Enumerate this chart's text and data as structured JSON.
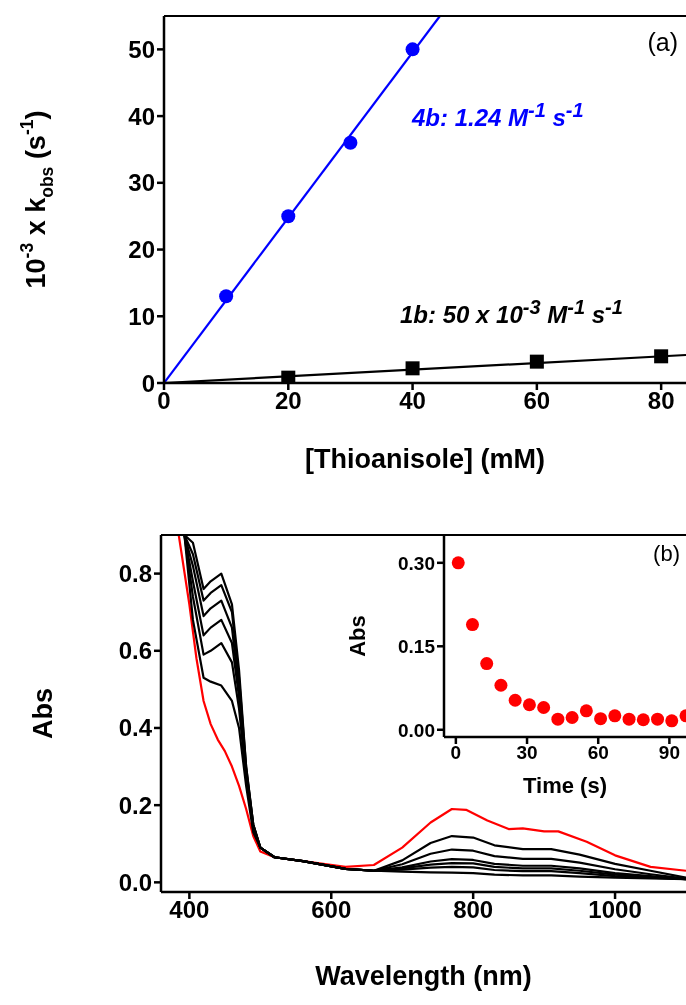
{
  "chart_data": [
    {
      "type": "scatter",
      "xlabel": "[Thioanisole] (mM)",
      "ylabel": "10$^{-3}$ x k$_{obs}$ (s$^{-1}$)",
      "xlim": [
        0,
        84
      ],
      "ylim": [
        0,
        55
      ],
      "xticks": [
        0,
        20,
        40,
        60,
        80
      ],
      "yticks": [
        0,
        10,
        20,
        30,
        40,
        50
      ],
      "annotations": [
        "(a)",
        "4b: 1.24 M$^{-1}$ s$^{-1}$",
        "1b: 50 x 10$^{-3}$ M$^{-1}$ s$^{-1}$"
      ],
      "series": [
        {
          "color": "#0000ff",
          "marker": "circle",
          "x": [
            10,
            20,
            30,
            40
          ],
          "values": [
            13,
            25,
            36,
            50
          ]
        },
        {
          "color": "#000000",
          "marker": "square",
          "x": [
            20,
            40,
            60,
            80
          ],
          "values": [
            0.8,
            2.2,
            3.2,
            4.0
          ]
        },
        {
          "type": "line",
          "color": "#0000ff",
          "x": [
            0,
            44.4
          ],
          "values": [
            0,
            55
          ]
        },
        {
          "type": "line",
          "color": "#000000",
          "x": [
            0,
            84
          ],
          "values": [
            0,
            4.2
          ]
        }
      ]
    },
    {
      "type": "line",
      "xlabel": "Wavelength (nm)",
      "ylabel": "Abs",
      "xlim": [
        360,
        1100
      ],
      "ylim": [
        -0.025,
        0.9
      ],
      "xticks": [
        400,
        600,
        800,
        1000
      ],
      "yticks": [
        {
          "value": 0,
          "label": "0.0"
        },
        {
          "value": 0.2,
          "label": "0.2"
        },
        {
          "value": 0.4,
          "label": "0.4"
        },
        {
          "value": 0.6,
          "label": "0.6"
        },
        {
          "value": 0.8,
          "label": "0.8"
        }
      ],
      "series": [
        {
          "color": "#ff0000",
          "x": [
            385,
            400,
            410,
            420,
            430,
            440,
            450,
            460,
            470,
            480,
            490,
            500,
            520,
            560,
            620,
            660,
            700,
            740,
            770,
            790,
            820,
            850,
            870,
            900,
            920,
            960,
            1000,
            1050,
            1100
          ],
          "values": [
            0.9,
            0.72,
            0.58,
            0.47,
            0.41,
            0.37,
            0.34,
            0.3,
            0.25,
            0.19,
            0.12,
            0.08,
            0.065,
            0.055,
            0.04,
            0.045,
            0.09,
            0.155,
            0.19,
            0.188,
            0.16,
            0.138,
            0.14,
            0.132,
            0.132,
            0.105,
            0.07,
            0.04,
            0.03
          ]
        },
        {
          "color": "#000000",
          "x": [
            393,
            405,
            420,
            430,
            445,
            460,
            470,
            480,
            490,
            500,
            520,
            560,
            620,
            660,
            700,
            740,
            770,
            800,
            830,
            870,
            910,
            950,
            1000,
            1050,
            1100
          ],
          "values": [
            0.9,
            0.88,
            0.76,
            0.78,
            0.8,
            0.72,
            0.55,
            0.3,
            0.15,
            0.09,
            0.065,
            0.055,
            0.035,
            0.03,
            0.028,
            0.026,
            0.025,
            0.024,
            0.02,
            0.018,
            0.018,
            0.015,
            0.012,
            0.01,
            0.008
          ]
        },
        {
          "color": "#000000",
          "x": [
            393,
            405,
            420,
            430,
            445,
            460,
            470,
            480,
            490,
            500,
            520,
            560,
            620,
            660,
            700,
            740,
            770,
            800,
            830,
            870,
            910,
            950,
            1000,
            1050,
            1100
          ],
          "values": [
            0.9,
            0.85,
            0.73,
            0.75,
            0.77,
            0.7,
            0.53,
            0.3,
            0.15,
            0.09,
            0.065,
            0.055,
            0.035,
            0.03,
            0.033,
            0.038,
            0.04,
            0.039,
            0.032,
            0.029,
            0.029,
            0.024,
            0.016,
            0.012,
            0.008
          ]
        },
        {
          "color": "#000000",
          "x": [
            393,
            405,
            420,
            430,
            445,
            460,
            470,
            480,
            490,
            500,
            520,
            560,
            620,
            660,
            700,
            740,
            770,
            800,
            830,
            870,
            910,
            950,
            1000,
            1050,
            1100
          ],
          "values": [
            0.9,
            0.82,
            0.69,
            0.71,
            0.73,
            0.66,
            0.5,
            0.29,
            0.15,
            0.09,
            0.065,
            0.055,
            0.035,
            0.03,
            0.036,
            0.046,
            0.05,
            0.049,
            0.04,
            0.036,
            0.036,
            0.03,
            0.02,
            0.014,
            0.008
          ]
        },
        {
          "color": "#000000",
          "x": [
            393,
            405,
            420,
            430,
            445,
            460,
            470,
            480,
            490,
            500,
            520,
            560,
            620,
            660,
            700,
            740,
            770,
            800,
            830,
            870,
            910,
            950,
            1000,
            1050,
            1100
          ],
          "values": [
            0.9,
            0.78,
            0.64,
            0.66,
            0.68,
            0.62,
            0.48,
            0.28,
            0.14,
            0.09,
            0.065,
            0.055,
            0.035,
            0.03,
            0.039,
            0.054,
            0.06,
            0.058,
            0.048,
            0.043,
            0.043,
            0.036,
            0.024,
            0.016,
            0.008
          ]
        },
        {
          "color": "#000000",
          "x": [
            393,
            405,
            420,
            430,
            445,
            460,
            470,
            480,
            490,
            500,
            520,
            560,
            620,
            660,
            700,
            740,
            770,
            800,
            830,
            870,
            910,
            950,
            1000,
            1050,
            1100
          ],
          "values": [
            0.9,
            0.74,
            0.59,
            0.6,
            0.62,
            0.57,
            0.45,
            0.27,
            0.14,
            0.09,
            0.065,
            0.055,
            0.035,
            0.03,
            0.047,
            0.074,
            0.085,
            0.082,
            0.068,
            0.061,
            0.061,
            0.051,
            0.034,
            0.021,
            0.01
          ]
        },
        {
          "color": "#000000",
          "x": [
            393,
            405,
            420,
            430,
            445,
            460,
            470,
            480,
            490,
            500,
            520,
            560,
            620,
            660,
            700,
            740,
            770,
            800,
            830,
            870,
            910,
            950,
            1000,
            1050,
            1100
          ],
          "values": [
            0.9,
            0.68,
            0.53,
            0.52,
            0.51,
            0.47,
            0.4,
            0.25,
            0.13,
            0.09,
            0.065,
            0.055,
            0.035,
            0.03,
            0.057,
            0.102,
            0.12,
            0.116,
            0.096,
            0.086,
            0.086,
            0.072,
            0.048,
            0.03,
            0.012
          ]
        }
      ]
    },
    {
      "type": "scatter",
      "xlabel": "Time (s)",
      "ylabel": "Abs",
      "xlim": [
        -5,
        97
      ],
      "ylim": [
        -0.013,
        0.35
      ],
      "xticks": [
        0,
        30,
        60,
        90
      ],
      "yticks": [
        {
          "value": 0,
          "label": "0.00"
        },
        {
          "value": 0.15,
          "label": "0.15"
        },
        {
          "value": 0.3,
          "label": "0.30"
        }
      ],
      "annotations": [
        "(b)"
      ],
      "marker": "circle",
      "series": [
        {
          "color": "#ff0000",
          "x": [
            1,
            7,
            13,
            19,
            25,
            31,
            37,
            43,
            49,
            55,
            61,
            67,
            73,
            79,
            85,
            91,
            97
          ],
          "values": [
            0.3,
            0.189,
            0.119,
            0.08,
            0.053,
            0.045,
            0.04,
            0.019,
            0.022,
            0.034,
            0.02,
            0.025,
            0.019,
            0.018,
            0.019,
            0.016,
            0.025
          ]
        }
      ]
    }
  ]
}
